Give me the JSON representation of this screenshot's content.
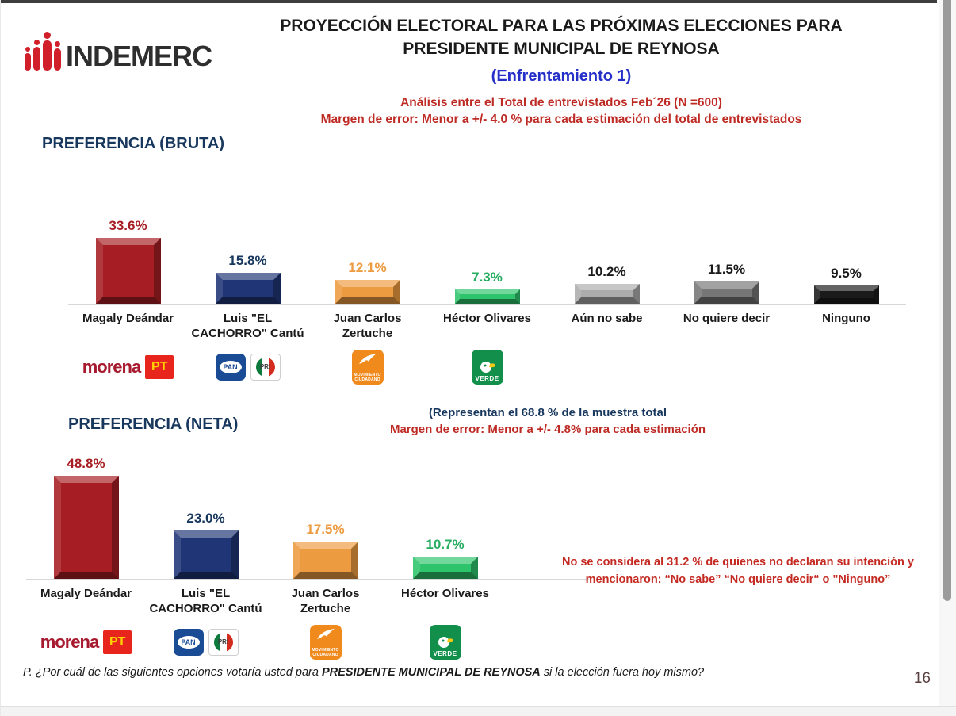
{
  "logo": {
    "brand": "INDEMERC"
  },
  "header": {
    "title_line1": "PROYECCIÓN ELECTORAL PARA LAS PRÓXIMAS ELECCIONES PARA",
    "title_line2": "PRESIDENTE MUNICIPAL DE REYNOSA",
    "subtitle": "(Enfrentamiento 1)",
    "analysis": "Análisis entre el Total de entrevistados Feb´26 (N =600)",
    "margin": "Margen de error: Menor a +/- 4.0 %  para cada estimación del total de entrevistados"
  },
  "chart_data": [
    {
      "type": "bar",
      "title": "PREFERENCIA (BRUTA)",
      "categories": [
        "Magaly Deándar",
        "Luis \"EL CACHORRO\" Cantú",
        "Juan Carlos Zertuche",
        "Héctor Olivares",
        "Aún no sabe",
        "No quiere decir",
        "Ninguno"
      ],
      "values": [
        33.6,
        15.8,
        12.1,
        7.3,
        10.2,
        11.5,
        9.5
      ],
      "value_labels": [
        "33.6%",
        "15.8%",
        "12.1%",
        "7.3%",
        "10.2%",
        "11.5%",
        "9.5%"
      ],
      "bar_colors": [
        "#a61e23",
        "#1f3575",
        "#ed9b40",
        "#2ec46b",
        "#acacac",
        "#767676",
        "#1b1b1b"
      ],
      "label_colors": [
        "#a61e23",
        "#17375d",
        "#ed9b40",
        "#27ae60",
        "#1a1a1a",
        "#1a1a1a",
        "#1a1a1a"
      ],
      "party_logos": [
        [
          "morena",
          "pt"
        ],
        [
          "pan",
          "pri"
        ],
        [
          "mc"
        ],
        [
          "verde"
        ],
        [],
        [],
        []
      ],
      "xlabel": "",
      "ylabel": "",
      "ylim": [
        0,
        40
      ],
      "grid": false,
      "legend": "none"
    },
    {
      "type": "bar",
      "title": "PREFERENCIA (NETA)",
      "subtitle_line1": "(Representan el  68.8 % de la muestra total",
      "subtitle_line2": "Margen de error: Menor a +/- 4.8%  para cada estimación",
      "categories": [
        "Magaly Deándar",
        "Luis \"EL CACHORRO\" Cantú",
        "Juan Carlos Zertuche",
        "Héctor Olivares"
      ],
      "values": [
        48.8,
        23.0,
        17.5,
        10.7
      ],
      "value_labels": [
        "48.8%",
        "23.0%",
        "17.5%",
        "10.7%"
      ],
      "bar_colors": [
        "#a61e23",
        "#1f3575",
        "#ed9b40",
        "#2ec46b"
      ],
      "label_colors": [
        "#a61e23",
        "#17375d",
        "#ed9b40",
        "#27ae60"
      ],
      "party_logos": [
        [
          "morena",
          "pt"
        ],
        [
          "pan",
          "pri"
        ],
        [
          "mc"
        ],
        [
          "verde"
        ]
      ],
      "side_note_line1": "No se considera al 31.2 % de  quienes no declaran su intención  y",
      "side_note_line2": "mencionaron:   “No sabe” “No quiere decir“ o \"Ninguno”",
      "xlabel": "",
      "ylabel": "",
      "ylim": [
        0,
        55
      ],
      "grid": false,
      "legend": "none"
    }
  ],
  "party_logo_labels": {
    "morena": "morena",
    "pt": "PT",
    "pan": "PAN",
    "pri": "PRI",
    "mc": "MOVIMIENTO CIUDADANO",
    "verde": "VERDE"
  },
  "footer": {
    "question_prefix": "P. ¿Por cuál de las siguientes opciones votaría usted para ",
    "question_bold": "PRESIDENTE MUNICIPAL DE REYNOSA",
    "question_suffix": "  si la elección fuera hoy mismo?"
  },
  "page_number": "16"
}
